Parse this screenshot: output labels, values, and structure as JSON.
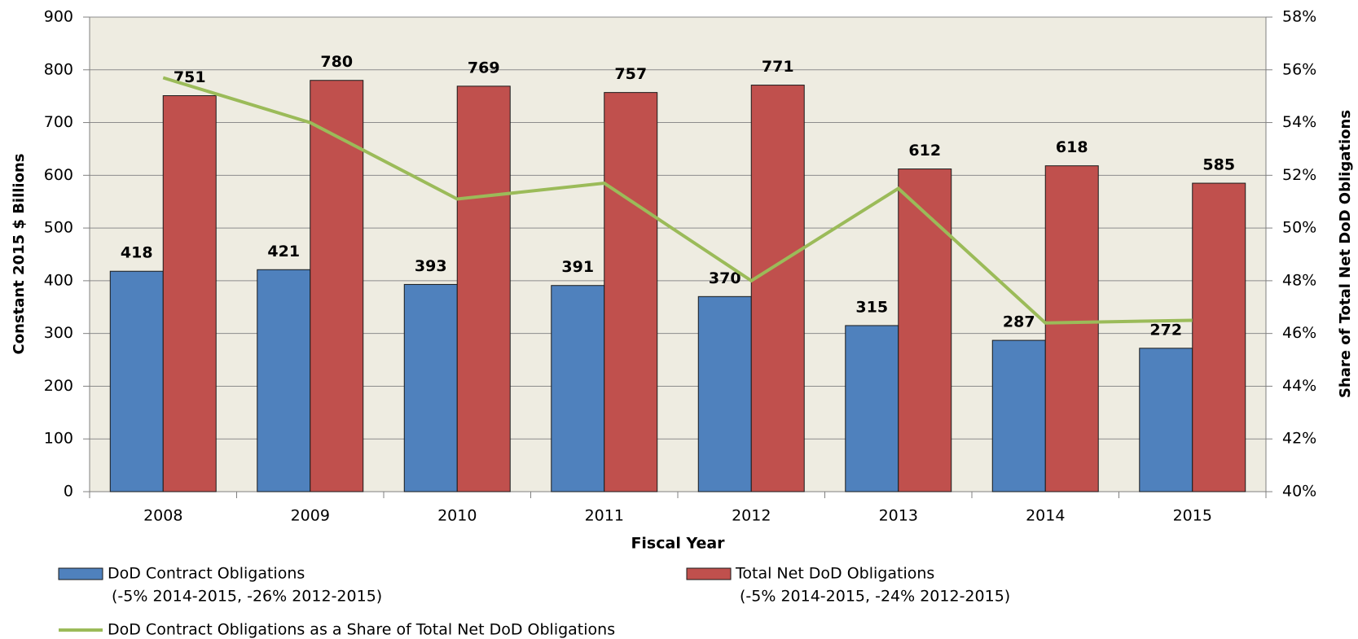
{
  "chart_data": {
    "type": "bar",
    "x_label": "Fiscal Year",
    "y_label": "Constant 2015 $ Billions",
    "y2_label": "Share of Total Net DoD Obligations",
    "categories": [
      "2008",
      "2009",
      "2010",
      "2011",
      "2012",
      "2013",
      "2014",
      "2015"
    ],
    "series": [
      {
        "name": "DoD Contract Obligations",
        "note": "(-5% 2014-2015, -26% 2012-2015)",
        "type": "bar",
        "color": "#4f81bd",
        "values": [
          418,
          421,
          393,
          391,
          370,
          315,
          287,
          272
        ]
      },
      {
        "name": "Total Net DoD Obligations",
        "note": "(-5% 2014-2015, -24% 2012-2015)",
        "type": "bar",
        "color": "#c0504d",
        "values": [
          751,
          780,
          769,
          757,
          771,
          612,
          618,
          585
        ]
      },
      {
        "name": "DoD Contract Obligations as a Share of Total Net DoD Obligations",
        "type": "line",
        "axis": "y2",
        "color": "#9bbb59",
        "values": [
          55.7,
          54.0,
          51.1,
          51.7,
          48.0,
          51.5,
          46.4,
          46.5
        ]
      }
    ],
    "ylim": [
      0,
      900
    ],
    "yticks": [
      0,
      100,
      200,
      300,
      400,
      500,
      600,
      700,
      800,
      900
    ],
    "y2lim": [
      40,
      58
    ],
    "y2ticks": [
      {
        "value": 40,
        "label": "40%"
      },
      {
        "value": 42,
        "label": "42%"
      },
      {
        "value": 44,
        "label": "44%"
      },
      {
        "value": 46,
        "label": "46%"
      },
      {
        "value": 48,
        "label": "48%"
      },
      {
        "value": 50,
        "label": "50%"
      },
      {
        "value": 52,
        "label": "52%"
      },
      {
        "value": 54,
        "label": "54%"
      },
      {
        "value": 56,
        "label": "56%"
      },
      {
        "value": 58,
        "label": "58%"
      }
    ],
    "grid": true
  }
}
